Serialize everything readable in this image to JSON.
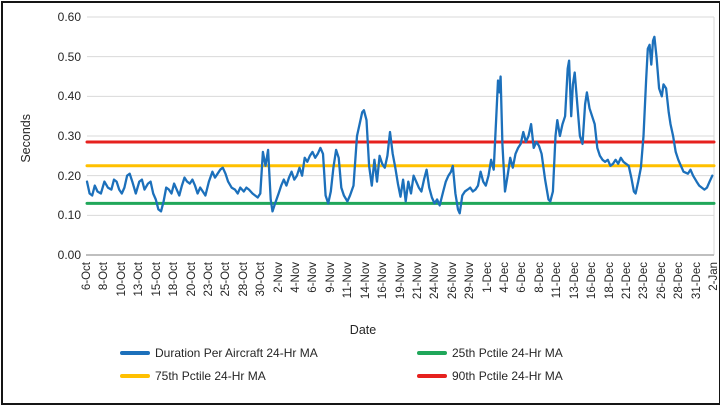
{
  "chart_data": {
    "type": "line",
    "title": "",
    "xlabel": "Date",
    "ylabel": "Seconds",
    "ylim": [
      0,
      0.6
    ],
    "ytick_step": 0.1,
    "ytick_labels": [
      "0.00",
      "0.10",
      "0.20",
      "0.30",
      "0.40",
      "0.50",
      "0.60"
    ],
    "grid": true,
    "legend_position": "bottom",
    "x_unit": "category tick index (0 = 6-Oct ... 36 = 2-Jan, uniform spacing)",
    "categories": [
      "6-Oct",
      "8-Oct",
      "10-Oct",
      "13-Oct",
      "15-Oct",
      "18-Oct",
      "20-Oct",
      "23-Oct",
      "25-Oct",
      "28-Oct",
      "30-Oct",
      "2-Nov",
      "4-Nov",
      "6-Nov",
      "9-Nov",
      "11-Nov",
      "14-Nov",
      "16-Nov",
      "19-Nov",
      "21-Nov",
      "24-Nov",
      "26-Nov",
      "29-Nov",
      "1-Dec",
      "4-Dec",
      "6-Dec",
      "8-Dec",
      "11-Dec",
      "13-Dec",
      "16-Dec",
      "18-Dec",
      "21-Dec",
      "23-Dec",
      "26-Dec",
      "28-Dec",
      "31-Dec",
      "2-Jan"
    ],
    "series": [
      {
        "name": "Duration Per Aircraft 24-Hr MA",
        "color": "#1C70BB",
        "kind": "noisy-line",
        "points": [
          [
            0,
            0.185
          ],
          [
            0.15,
            0.155
          ],
          [
            0.3,
            0.15
          ],
          [
            0.45,
            0.175
          ],
          [
            0.6,
            0.16
          ],
          [
            0.8,
            0.155
          ],
          [
            1,
            0.185
          ],
          [
            1.2,
            0.17
          ],
          [
            1.4,
            0.165
          ],
          [
            1.55,
            0.19
          ],
          [
            1.7,
            0.185
          ],
          [
            1.85,
            0.165
          ],
          [
            2,
            0.155
          ],
          [
            2.15,
            0.17
          ],
          [
            2.3,
            0.2
          ],
          [
            2.45,
            0.205
          ],
          [
            2.6,
            0.185
          ],
          [
            2.8,
            0.155
          ],
          [
            3,
            0.185
          ],
          [
            3.15,
            0.19
          ],
          [
            3.3,
            0.165
          ],
          [
            3.5,
            0.18
          ],
          [
            3.65,
            0.185
          ],
          [
            3.8,
            0.155
          ],
          [
            3.95,
            0.14
          ],
          [
            4.1,
            0.115
          ],
          [
            4.25,
            0.11
          ],
          [
            4.4,
            0.135
          ],
          [
            4.55,
            0.17
          ],
          [
            4.7,
            0.165
          ],
          [
            4.85,
            0.155
          ],
          [
            5,
            0.18
          ],
          [
            5.15,
            0.165
          ],
          [
            5.3,
            0.15
          ],
          [
            5.45,
            0.175
          ],
          [
            5.6,
            0.195
          ],
          [
            5.75,
            0.185
          ],
          [
            5.9,
            0.18
          ],
          [
            6.05,
            0.19
          ],
          [
            6.2,
            0.175
          ],
          [
            6.35,
            0.155
          ],
          [
            6.5,
            0.17
          ],
          [
            6.65,
            0.16
          ],
          [
            6.8,
            0.15
          ],
          [
            7,
            0.185
          ],
          [
            7.2,
            0.21
          ],
          [
            7.35,
            0.195
          ],
          [
            7.5,
            0.205
          ],
          [
            7.65,
            0.215
          ],
          [
            7.8,
            0.22
          ],
          [
            7.95,
            0.205
          ],
          [
            8.1,
            0.185
          ],
          [
            8.3,
            0.17
          ],
          [
            8.5,
            0.165
          ],
          [
            8.65,
            0.155
          ],
          [
            8.8,
            0.17
          ],
          [
            9,
            0.16
          ],
          [
            9.15,
            0.17
          ],
          [
            9.3,
            0.165
          ],
          [
            9.5,
            0.155
          ],
          [
            9.65,
            0.15
          ],
          [
            9.8,
            0.145
          ],
          [
            9.95,
            0.155
          ],
          [
            10.1,
            0.26
          ],
          [
            10.25,
            0.225
          ],
          [
            10.4,
            0.265
          ],
          [
            10.55,
            0.14
          ],
          [
            10.65,
            0.11
          ],
          [
            10.8,
            0.13
          ],
          [
            11,
            0.155
          ],
          [
            11.15,
            0.175
          ],
          [
            11.3,
            0.19
          ],
          [
            11.45,
            0.175
          ],
          [
            11.6,
            0.195
          ],
          [
            11.75,
            0.21
          ],
          [
            11.9,
            0.19
          ],
          [
            12.05,
            0.2
          ],
          [
            12.2,
            0.22
          ],
          [
            12.35,
            0.2
          ],
          [
            12.5,
            0.245
          ],
          [
            12.65,
            0.235
          ],
          [
            12.8,
            0.25
          ],
          [
            12.95,
            0.26
          ],
          [
            13.1,
            0.245
          ],
          [
            13.25,
            0.255
          ],
          [
            13.4,
            0.27
          ],
          [
            13.55,
            0.255
          ],
          [
            13.7,
            0.15
          ],
          [
            13.85,
            0.13
          ],
          [
            14,
            0.16
          ],
          [
            14.15,
            0.22
          ],
          [
            14.3,
            0.265
          ],
          [
            14.45,
            0.245
          ],
          [
            14.6,
            0.17
          ],
          [
            14.75,
            0.15
          ],
          [
            14.95,
            0.135
          ],
          [
            15.1,
            0.15
          ],
          [
            15.3,
            0.175
          ],
          [
            15.5,
            0.3
          ],
          [
            15.65,
            0.33
          ],
          [
            15.8,
            0.36
          ],
          [
            15.9,
            0.365
          ],
          [
            16.05,
            0.34
          ],
          [
            16.2,
            0.225
          ],
          [
            16.35,
            0.175
          ],
          [
            16.5,
            0.24
          ],
          [
            16.65,
            0.185
          ],
          [
            16.8,
            0.25
          ],
          [
            16.95,
            0.23
          ],
          [
            17.1,
            0.22
          ],
          [
            17.25,
            0.25
          ],
          [
            17.4,
            0.31
          ],
          [
            17.55,
            0.255
          ],
          [
            17.7,
            0.22
          ],
          [
            17.85,
            0.18
          ],
          [
            18,
            0.147
          ],
          [
            18.15,
            0.19
          ],
          [
            18.3,
            0.135
          ],
          [
            18.45,
            0.185
          ],
          [
            18.6,
            0.155
          ],
          [
            18.75,
            0.2
          ],
          [
            18.9,
            0.185
          ],
          [
            19.05,
            0.17
          ],
          [
            19.2,
            0.16
          ],
          [
            19.35,
            0.19
          ],
          [
            19.5,
            0.215
          ],
          [
            19.65,
            0.17
          ],
          [
            19.8,
            0.145
          ],
          [
            19.95,
            0.13
          ],
          [
            20.1,
            0.14
          ],
          [
            20.25,
            0.125
          ],
          [
            20.45,
            0.16
          ],
          [
            20.6,
            0.185
          ],
          [
            20.75,
            0.2
          ],
          [
            20.9,
            0.21
          ],
          [
            21,
            0.225
          ],
          [
            21.15,
            0.155
          ],
          [
            21.3,
            0.115
          ],
          [
            21.4,
            0.105
          ],
          [
            21.55,
            0.15
          ],
          [
            21.7,
            0.16
          ],
          [
            21.85,
            0.165
          ],
          [
            22,
            0.17
          ],
          [
            22.15,
            0.16
          ],
          [
            22.3,
            0.165
          ],
          [
            22.45,
            0.175
          ],
          [
            22.6,
            0.21
          ],
          [
            22.75,
            0.185
          ],
          [
            22.9,
            0.175
          ],
          [
            23.05,
            0.2
          ],
          [
            23.2,
            0.24
          ],
          [
            23.35,
            0.215
          ],
          [
            23.5,
            0.35
          ],
          [
            23.6,
            0.44
          ],
          [
            23.68,
            0.41
          ],
          [
            23.75,
            0.45
          ],
          [
            23.85,
            0.28
          ],
          [
            24,
            0.16
          ],
          [
            24.15,
            0.2
          ],
          [
            24.3,
            0.245
          ],
          [
            24.45,
            0.22
          ],
          [
            24.6,
            0.255
          ],
          [
            24.75,
            0.27
          ],
          [
            24.9,
            0.28
          ],
          [
            25.05,
            0.31
          ],
          [
            25.2,
            0.285
          ],
          [
            25.35,
            0.3
          ],
          [
            25.5,
            0.33
          ],
          [
            25.65,
            0.27
          ],
          [
            25.8,
            0.285
          ],
          [
            25.95,
            0.275
          ],
          [
            26.1,
            0.255
          ],
          [
            26.3,
            0.19
          ],
          [
            26.5,
            0.14
          ],
          [
            26.6,
            0.135
          ],
          [
            26.75,
            0.16
          ],
          [
            26.9,
            0.3
          ],
          [
            27,
            0.34
          ],
          [
            27.15,
            0.3
          ],
          [
            27.3,
            0.33
          ],
          [
            27.45,
            0.35
          ],
          [
            27.6,
            0.47
          ],
          [
            27.68,
            0.49
          ],
          [
            27.8,
            0.35
          ],
          [
            27.9,
            0.43
          ],
          [
            28,
            0.46
          ],
          [
            28.15,
            0.38
          ],
          [
            28.3,
            0.3
          ],
          [
            28.45,
            0.28
          ],
          [
            28.6,
            0.38
          ],
          [
            28.7,
            0.41
          ],
          [
            28.85,
            0.37
          ],
          [
            29,
            0.35
          ],
          [
            29.15,
            0.33
          ],
          [
            29.3,
            0.27
          ],
          [
            29.45,
            0.25
          ],
          [
            29.6,
            0.24
          ],
          [
            29.75,
            0.235
          ],
          [
            29.9,
            0.24
          ],
          [
            30.05,
            0.225
          ],
          [
            30.2,
            0.23
          ],
          [
            30.35,
            0.24
          ],
          [
            30.5,
            0.23
          ],
          [
            30.65,
            0.245
          ],
          [
            30.8,
            0.235
          ],
          [
            30.95,
            0.23
          ],
          [
            31.1,
            0.225
          ],
          [
            31.25,
            0.195
          ],
          [
            31.4,
            0.16
          ],
          [
            31.5,
            0.155
          ],
          [
            31.65,
            0.185
          ],
          [
            31.8,
            0.22
          ],
          [
            31.95,
            0.3
          ],
          [
            32.1,
            0.44
          ],
          [
            32.2,
            0.52
          ],
          [
            32.3,
            0.53
          ],
          [
            32.4,
            0.48
          ],
          [
            32.5,
            0.54
          ],
          [
            32.58,
            0.55
          ],
          [
            32.7,
            0.5
          ],
          [
            32.85,
            0.42
          ],
          [
            33,
            0.4
          ],
          [
            33.1,
            0.43
          ],
          [
            33.25,
            0.42
          ],
          [
            33.4,
            0.36
          ],
          [
            33.5,
            0.33
          ],
          [
            33.65,
            0.3
          ],
          [
            33.8,
            0.26
          ],
          [
            33.95,
            0.24
          ],
          [
            34.1,
            0.225
          ],
          [
            34.25,
            0.21
          ],
          [
            34.5,
            0.205
          ],
          [
            34.65,
            0.215
          ],
          [
            34.8,
            0.2
          ],
          [
            35,
            0.185
          ],
          [
            35.15,
            0.175
          ],
          [
            35.3,
            0.17
          ],
          [
            35.45,
            0.165
          ],
          [
            35.6,
            0.17
          ],
          [
            35.75,
            0.185
          ],
          [
            35.9,
            0.2
          ]
        ]
      },
      {
        "name": "25th Pctile 24-Hr MA",
        "color": "#20A75A",
        "kind": "constant",
        "value": 0.13
      },
      {
        "name": "75th Pctile 24-Hr MA",
        "color": "#FFC000",
        "kind": "constant",
        "value": 0.225
      },
      {
        "name": "90th Pctile 24-Hr MA",
        "color": "#E6211E",
        "kind": "constant",
        "value": 0.285
      }
    ],
    "style": {
      "gridline_color": "#D9D9D9",
      "axis_line_color": "#BFBFBF",
      "text_color": "#262626",
      "frame_border_color": "#151515"
    }
  }
}
